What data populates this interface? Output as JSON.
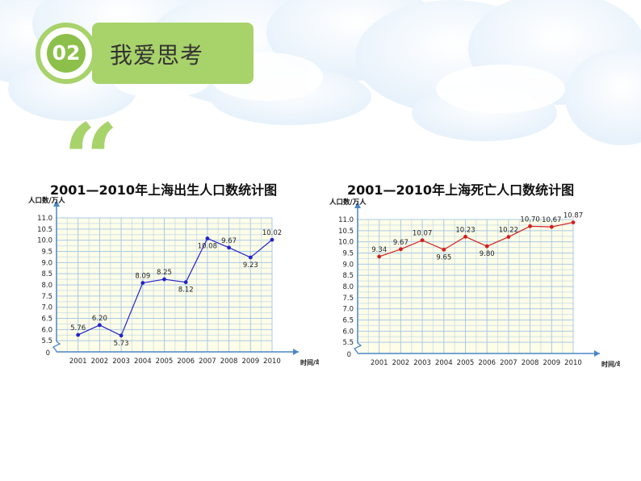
{
  "header": {
    "number": "02",
    "title": "我爱思考"
  },
  "quote_mark": "“",
  "colors": {
    "accent_green": "#a8d26a",
    "dark_green": "#8dc04a",
    "grid_blue": "#a9c9e8",
    "axis_blue": "#4a86c5",
    "chart_bg": "#fdfde8",
    "birth_series": "#2323c8",
    "death_series": "#d31f1f"
  },
  "chart_data": [
    {
      "type": "line",
      "title": "2001—2010年上海出生人口数统计图",
      "ylabel": "人口数/万人",
      "xlabel": "时间/年",
      "origin_label": "0",
      "categories": [
        "2001",
        "2002",
        "2003",
        "2004",
        "2005",
        "2006",
        "2007",
        "2008",
        "2009",
        "2010"
      ],
      "yticks": [
        "5.5",
        "6.0",
        "6.5",
        "7.0",
        "7.5",
        "8.0",
        "8.5",
        "9.0",
        "9.5",
        "10.0",
        "10.5",
        "11.0"
      ],
      "ylim": [
        5.5,
        11.0
      ],
      "axis_break": true,
      "grid": true,
      "values": [
        5.76,
        6.2,
        5.73,
        8.09,
        8.25,
        8.12,
        10.08,
        9.67,
        9.23,
        10.02
      ],
      "data_labels": [
        "5.76",
        "6.20",
        "5.73",
        "8.09",
        "8.25",
        "8.12",
        "10.08",
        "9.67",
        "9.23",
        "10.02"
      ],
      "label_pos": [
        "above",
        "above",
        "below",
        "above",
        "above",
        "below",
        "below",
        "above",
        "below",
        "above"
      ],
      "color": "#2323c8"
    },
    {
      "type": "line",
      "title": "2001—2010年上海死亡人口数统计图",
      "ylabel": "人口数/万人",
      "xlabel": "时间/年",
      "origin_label": "0",
      "categories": [
        "2001",
        "2002",
        "2003",
        "2004",
        "2005",
        "2006",
        "2007",
        "2008",
        "2009",
        "2010"
      ],
      "yticks": [
        "5.5",
        "6.0",
        "6.5",
        "7.0",
        "7.5",
        "8.0",
        "8.5",
        "9.0",
        "9.5",
        "10.0",
        "10.5",
        "11.0"
      ],
      "ylim": [
        5.5,
        11.0
      ],
      "axis_break": true,
      "grid": true,
      "values": [
        9.34,
        9.67,
        10.07,
        9.65,
        10.23,
        9.8,
        10.22,
        10.7,
        10.67,
        10.87
      ],
      "data_labels": [
        "9.34",
        "9.67",
        "10.07",
        "9.65",
        "10.23",
        "9.80",
        "10.22",
        "10.70",
        "10.67",
        "10.87"
      ],
      "label_pos": [
        "above",
        "above",
        "above",
        "below",
        "above",
        "below",
        "above",
        "above",
        "above",
        "above"
      ],
      "color": "#d31f1f"
    }
  ]
}
